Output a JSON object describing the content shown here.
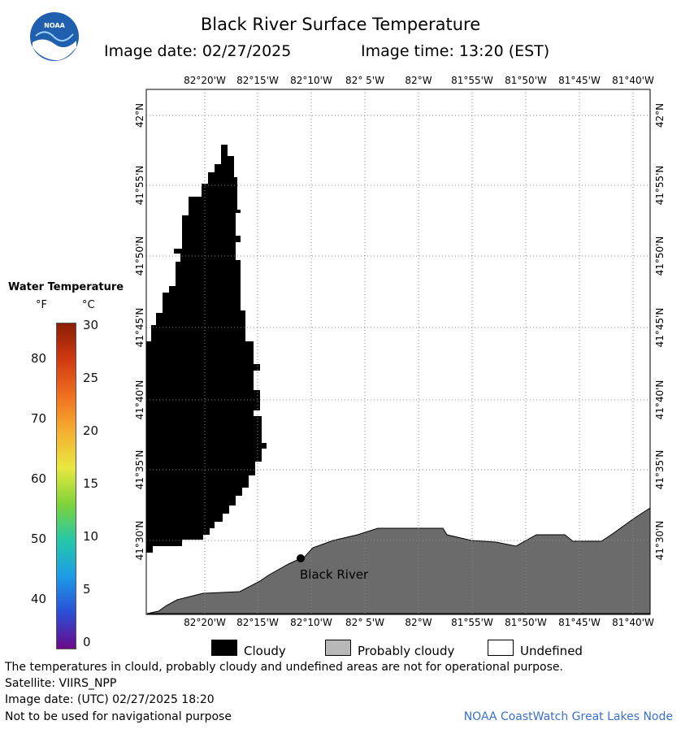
{
  "header": {
    "title": "Black River Surface Temperature",
    "image_date_label": "Image date: 02/27/2025",
    "image_time_label": "Image time: 13:20 (EST)",
    "logo_text": "NOAA"
  },
  "map": {
    "lon_ticks": [
      "82°20'W",
      "82°15'W",
      "82°10'W",
      "82° 5'W",
      "82°W",
      "81°55'W",
      "81°50'W",
      "81°45'W",
      "81°40'W"
    ],
    "lat_ticks": [
      "42°N",
      "41°55'N",
      "41°50'N",
      "41°45'N",
      "41°40'N",
      "41°35'N",
      "41°30'N"
    ],
    "location_label": "Black River",
    "colors": {
      "cloud": "#000000",
      "probably_cloudy_land": "#6b6b6b",
      "grid": "#888888",
      "background": "#ffffff"
    }
  },
  "legend": {
    "title": "Water Temperature",
    "unit_f": "°F",
    "unit_c": "°C",
    "fahrenheit_ticks": [
      "80",
      "70",
      "60",
      "50",
      "40"
    ],
    "celsius_ticks": [
      "30",
      "25",
      "20",
      "15",
      "10",
      "5",
      "0"
    ],
    "colormap": [
      "#6a0a8a",
      "#2a4fd6",
      "#1e9be8",
      "#25c8a8",
      "#7fd33a",
      "#e8e840",
      "#f5b030",
      "#f07020",
      "#d03a10",
      "#8a1e06"
    ]
  },
  "key": {
    "cloudy_label": "Cloudy",
    "probably_cloudy_label": "Probably cloudy",
    "undefined_label": "Undefined",
    "cloudy_color": "#000000",
    "probably_cloudy_color": "#b8b8b8",
    "undefined_color": "#ffffff"
  },
  "footer": {
    "note": "The temperatures in clould, probably cloudy and undefined areas are not for operational purpose.",
    "satellite": "Satellite: VIIRS_NPP",
    "image_date_utc": "Image date: (UTC) 02/27/2025  18:20",
    "disclaimer": "Not to be used for navigational purpose",
    "credit": "NOAA CoastWatch Great Lakes Node"
  }
}
